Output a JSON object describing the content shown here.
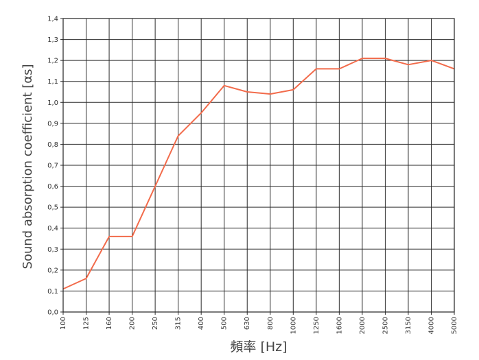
{
  "chart_data": {
    "type": "line",
    "xlabel": "頻率 [Hz]",
    "ylabel": "Sound absorption coefficient [αs]",
    "categories": [
      "100",
      "125",
      "160",
      "200",
      "250",
      "315",
      "400",
      "500",
      "630",
      "800",
      "1000",
      "1250",
      "1600",
      "2000",
      "2500",
      "3150",
      "4000",
      "5000"
    ],
    "y_ticks": [
      "0,0",
      "0,1",
      "0,2",
      "0,3",
      "0,4",
      "0,5",
      "0,6",
      "0,7",
      "0,8",
      "0,9",
      "1,0",
      "1,1",
      "1,2",
      "1,3",
      "1,4"
    ],
    "ylim": [
      0,
      1.4
    ],
    "grid": true,
    "series": [
      {
        "values": [
          0.11,
          0.16,
          0.36,
          0.36,
          0.6,
          0.84,
          0.95,
          1.08,
          1.05,
          1.04,
          1.06,
          1.16,
          1.16,
          1.21,
          1.21,
          1.18,
          1.2,
          1.16
        ],
        "color": "#f26b4b"
      }
    ]
  }
}
